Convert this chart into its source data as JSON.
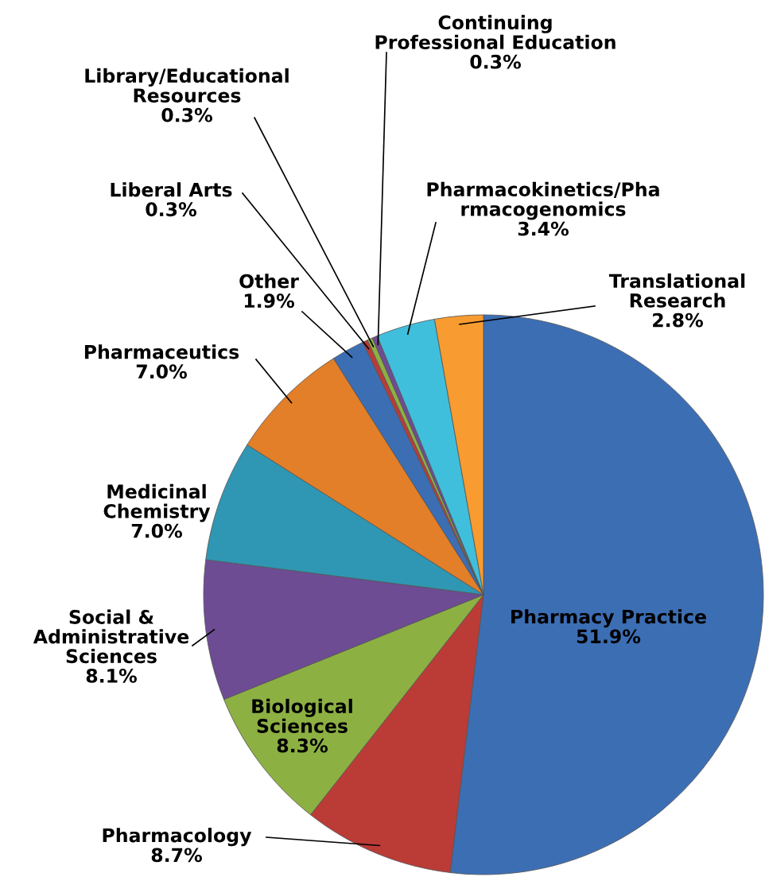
{
  "chart_data": {
    "type": "pie",
    "categories": [
      "Pharmacy Practice",
      "Pharmacology",
      "Biological\nSciences",
      "Social &\nAdministrative\nSciences",
      "Medicinal\nChemistry",
      "Pharmaceutics",
      "Other",
      "Liberal Arts",
      "Library/Educational\nResources",
      "Continuing\nProfessional Education",
      "Pharmacokinetics/Pha\nrmacogenomics",
      "Translational\nResearch"
    ],
    "values": [
      51.9,
      8.7,
      8.3,
      8.1,
      7.0,
      7.0,
      1.9,
      0.3,
      0.3,
      0.3,
      3.4,
      2.8
    ],
    "value_labels": [
      "51.9%",
      "8.7%",
      "8.3%",
      "8.1%",
      "7.0%",
      "7.0%",
      "1.9%",
      "0.3%",
      "0.3%",
      "0.3%",
      "3.4%",
      "2.8%"
    ],
    "colors": [
      "#3c6eb4",
      "#bb3b37",
      "#8db043",
      "#6e4c94",
      "#2f97b3",
      "#e27f28",
      "#3c6eb4",
      "#bb3b37",
      "#8db043",
      "#6e4c94",
      "#3fbfdc",
      "#f89b30"
    ]
  }
}
